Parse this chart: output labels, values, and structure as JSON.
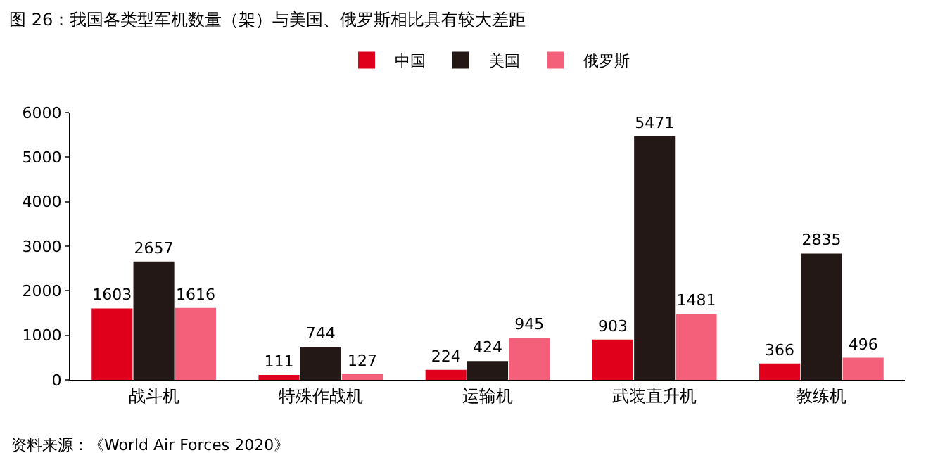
{
  "chart_data": {
    "type": "bar",
    "title": "图 26：我国各类型军机数量（架）与美国、俄罗斯相比具有较大差距",
    "categories": [
      "战斗机",
      "特殊作战机",
      "运输机",
      "武装直升机",
      "教练机"
    ],
    "series": [
      {
        "name": "中国",
        "color": "#e0001b",
        "values": [
          1603,
          111,
          224,
          903,
          366
        ]
      },
      {
        "name": "美国",
        "color": "#231815",
        "values": [
          2657,
          744,
          424,
          5471,
          2835
        ]
      },
      {
        "name": "俄罗斯",
        "color": "#f4607a",
        "values": [
          1616,
          127,
          945,
          1481,
          496
        ]
      }
    ],
    "ylim": [
      0,
      6000
    ],
    "yticks": [
      0,
      1000,
      2000,
      3000,
      4000,
      5000,
      6000
    ],
    "grid": false,
    "legend": "top",
    "data_labels": true,
    "annotations": [
      "资料来源：《World Air Forces 2020》"
    ]
  }
}
